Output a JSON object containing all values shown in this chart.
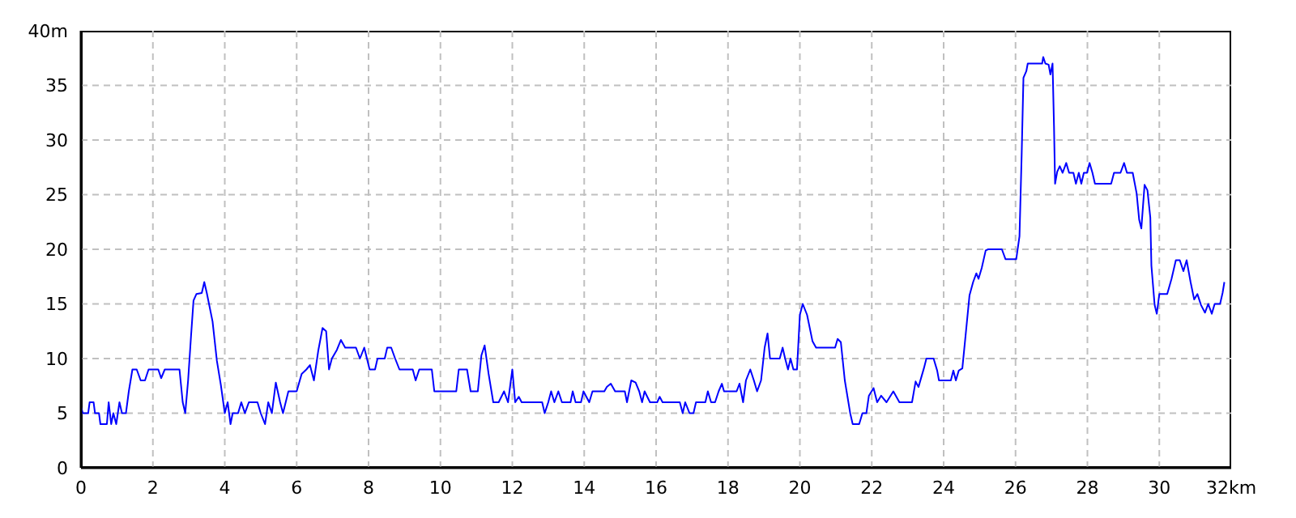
{
  "chart_data": {
    "type": "line",
    "x": [
      0,
      0.05,
      0.2,
      0.24,
      0.35,
      0.39,
      0.5,
      0.54,
      0.72,
      0.77,
      0.84,
      0.9,
      0.98,
      1.07,
      1.14,
      1.25,
      1.33,
      1.43,
      1.55,
      1.66,
      1.78,
      1.88,
      2.15,
      2.23,
      2.33,
      2.74,
      2.83,
      2.9,
      2.98,
      3.06,
      3.13,
      3.21,
      3.36,
      3.43,
      3.5,
      3.66,
      3.78,
      3.89,
      4.0,
      4.08,
      4.16,
      4.22,
      4.37,
      4.46,
      4.56,
      4.67,
      4.91,
      5.0,
      5.12,
      5.21,
      5.31,
      5.42,
      5.54,
      5.62,
      5.77,
      6.0,
      6.14,
      6.27,
      6.37,
      6.48,
      6.6,
      6.72,
      6.82,
      6.9,
      6.98,
      7.12,
      7.23,
      7.35,
      7.65,
      7.76,
      7.88,
      8.03,
      8.18,
      8.25,
      8.45,
      8.52,
      8.63,
      8.74,
      8.86,
      9.23,
      9.31,
      9.41,
      9.76,
      9.83,
      10.44,
      10.51,
      10.74,
      10.84,
      11.04,
      11.14,
      11.23,
      11.34,
      11.47,
      11.62,
      11.77,
      11.88,
      12.0,
      12.08,
      12.18,
      12.26,
      12.83,
      12.9,
      13.0,
      13.08,
      13.17,
      13.28,
      13.38,
      13.62,
      13.68,
      13.76,
      13.91,
      13.98,
      14.14,
      14.23,
      14.56,
      14.63,
      14.74,
      14.86,
      15.13,
      15.19,
      15.31,
      15.43,
      15.53,
      15.61,
      15.68,
      15.83,
      16.03,
      16.1,
      16.18,
      16.66,
      16.74,
      16.81,
      16.93,
      17.04,
      17.11,
      17.37,
      17.44,
      17.53,
      17.64,
      17.74,
      17.83,
      17.89,
      18.24,
      18.32,
      18.42,
      18.5,
      18.62,
      18.72,
      18.81,
      18.92,
      19.02,
      19.1,
      19.17,
      19.44,
      19.52,
      19.59,
      19.67,
      19.74,
      19.82,
      19.92,
      20.0,
      20.08,
      20.2,
      20.35,
      20.45,
      20.98,
      21.05,
      21.14,
      21.25,
      21.4,
      21.47,
      21.65,
      21.74,
      21.85,
      21.92,
      22.05,
      22.15,
      22.26,
      22.41,
      22.6,
      22.77,
      23.12,
      23.22,
      23.3,
      23.45,
      23.52,
      23.72,
      23.82,
      23.87,
      24.2,
      24.27,
      24.34,
      24.42,
      24.52,
      24.61,
      24.72,
      24.82,
      24.91,
      24.97,
      25.06,
      25.17,
      25.24,
      25.62,
      25.72,
      26.02,
      26.11,
      26.17,
      26.22,
      26.3,
      26.34,
      26.74,
      26.77,
      26.83,
      26.92,
      26.97,
      27.03,
      27.07,
      27.1,
      27.16,
      27.23,
      27.31,
      27.41,
      27.49,
      27.61,
      27.68,
      27.76,
      27.83,
      27.9,
      27.99,
      28.06,
      28.14,
      28.21,
      28.66,
      28.74,
      28.92,
      29.02,
      29.1,
      29.26,
      29.37,
      29.44,
      29.5,
      29.59,
      29.67,
      29.75,
      29.78,
      29.87,
      29.93,
      30.0,
      30.22,
      30.34,
      30.46,
      30.57,
      30.67,
      30.76,
      30.87,
      30.97,
      31.06,
      31.16,
      31.27,
      31.36,
      31.46,
      31.54,
      31.69,
      31.76,
      31.81
    ],
    "series": [
      {
        "color": "#0000ff",
        "values": [
          5.6,
          5,
          5,
          6,
          6,
          5,
          5,
          4,
          4,
          6,
          4,
          5,
          4,
          6,
          5,
          5,
          7,
          9,
          9,
          8,
          8,
          9,
          9,
          8.2,
          9,
          9,
          6,
          5,
          8,
          12,
          15.3,
          15.9,
          16,
          17,
          16,
          13.4,
          9.8,
          7.6,
          5,
          6,
          4,
          5,
          5,
          6,
          5,
          6,
          6,
          5,
          4,
          6,
          5,
          7.8,
          6,
          5,
          7,
          7,
          8.6,
          9,
          9.4,
          8,
          10.7,
          12.8,
          12.5,
          9,
          10,
          10.8,
          11.7,
          11,
          11,
          10,
          11,
          9,
          9,
          10,
          10,
          11,
          11,
          10,
          9,
          9,
          8,
          9,
          9,
          7,
          7,
          9,
          9,
          7,
          7,
          10.3,
          11.2,
          8.6,
          6,
          6,
          7,
          6,
          9,
          6,
          6.5,
          6,
          6,
          5,
          6,
          7,
          6,
          7,
          6,
          6,
          7,
          6,
          6,
          7,
          6,
          7,
          7,
          7.4,
          7.7,
          7,
          7,
          6,
          8,
          7.8,
          7,
          6,
          7,
          6,
          6,
          6.5,
          6,
          6,
          5,
          6,
          5,
          5,
          6,
          6,
          7,
          6,
          6,
          7,
          7.7,
          7,
          7,
          7.7,
          6,
          8,
          9,
          8,
          7,
          8,
          11,
          12.3,
          10,
          10,
          11,
          10,
          9,
          10,
          9,
          9,
          14,
          15,
          14,
          11.6,
          11,
          11,
          11.8,
          11.5,
          8,
          5,
          4,
          4,
          5,
          5,
          6.6,
          7.3,
          6,
          6.6,
          6,
          7,
          6,
          6,
          7.9,
          7.4,
          9.1,
          10,
          10,
          8.9,
          8,
          8,
          8.9,
          8,
          8.9,
          9.1,
          12.1,
          15.8,
          17,
          17.8,
          17.3,
          18.3,
          19.9,
          20,
          20,
          19.1,
          19.1,
          21.2,
          28.6,
          35.7,
          36.3,
          37,
          37,
          37.6,
          37,
          36.9,
          36,
          37,
          31.3,
          26,
          27.1,
          27.6,
          27,
          27.9,
          27,
          27,
          26,
          27,
          26,
          27,
          27,
          27.9,
          27,
          26,
          26,
          27,
          27,
          27.9,
          27,
          27,
          25.1,
          22.7,
          21.9,
          25.9,
          25.4,
          22.9,
          18.5,
          14.9,
          14.1,
          15.9,
          15.9,
          17.3,
          19,
          19,
          18,
          19,
          17,
          15.4,
          15.9,
          14.9,
          14.2,
          15,
          14.1,
          15,
          15,
          16,
          17
        ]
      }
    ],
    "xlim": [
      0,
      32
    ],
    "xticks": [
      0,
      2,
      4,
      6,
      8,
      10,
      12,
      14,
      16,
      18,
      20,
      22,
      24,
      26,
      28,
      30,
      {
        "value": 32,
        "label": "32km"
      }
    ],
    "ylim": [
      0,
      40
    ],
    "yticks": [
      0,
      5,
      10,
      15,
      20,
      25,
      30,
      35,
      {
        "value": 40,
        "label": "40m"
      }
    ],
    "grid": true,
    "line_style": "solid",
    "marker": "none",
    "legend": false
  }
}
